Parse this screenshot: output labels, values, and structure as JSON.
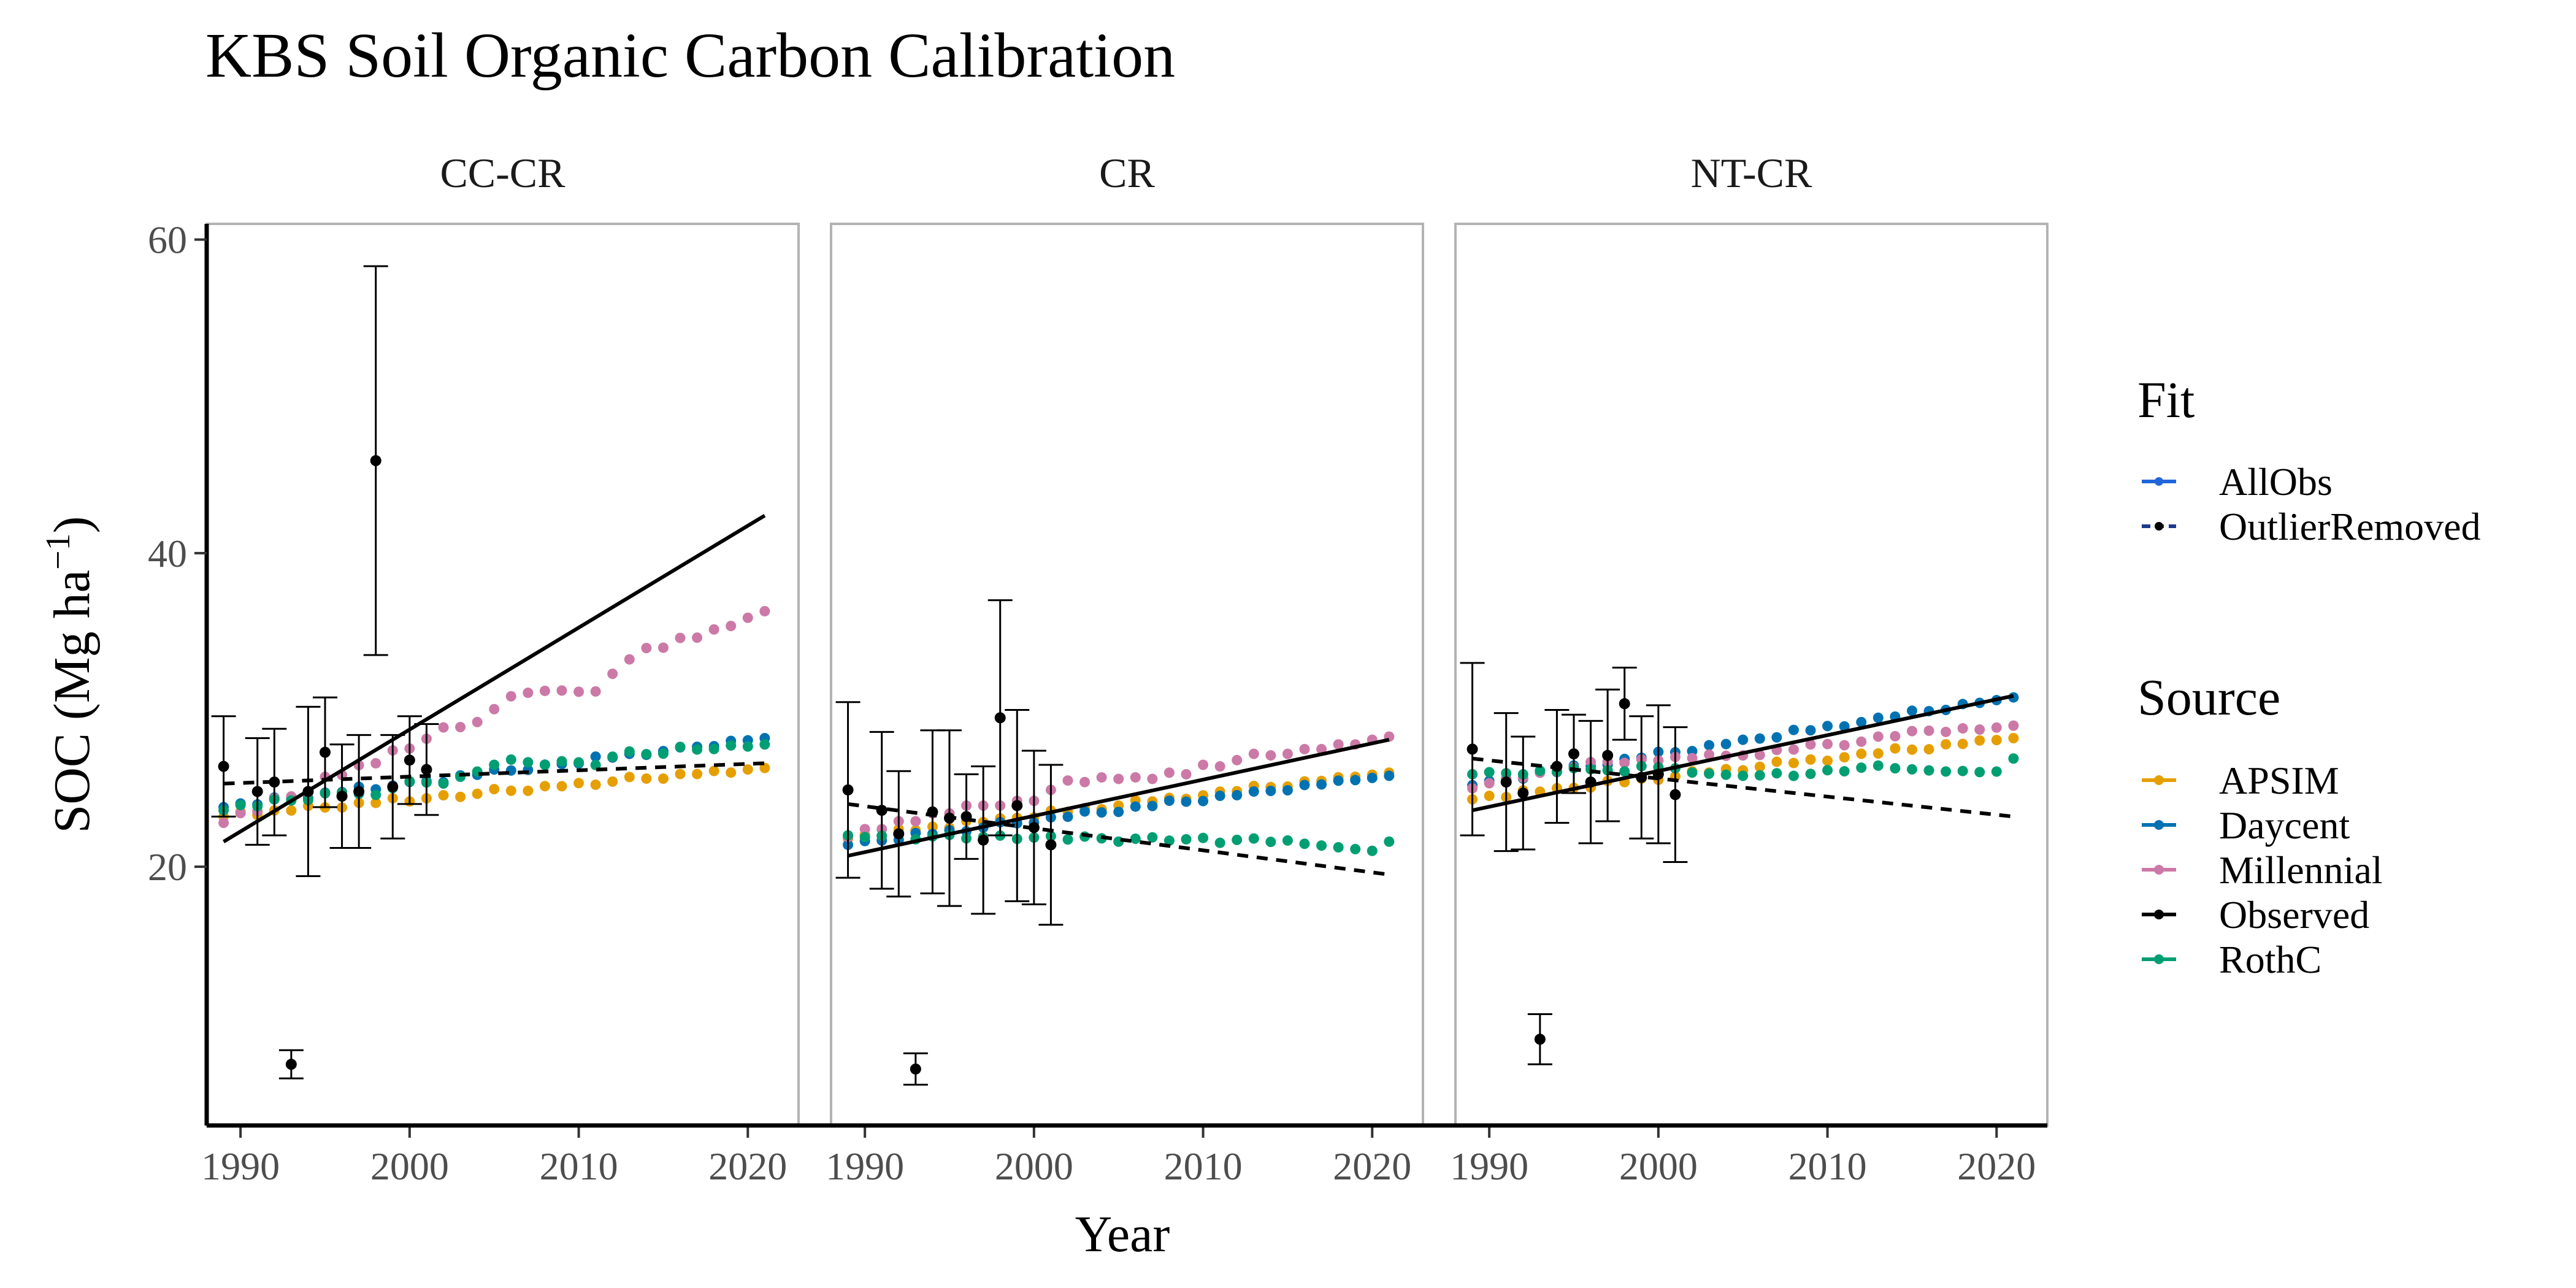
{
  "chart_data": {
    "type": "line",
    "title": "KBS Soil Organic Carbon Calibration",
    "xlabel": "Year",
    "ylabel_main": "SOC (Mg ha",
    "ylabel_sup": "−1",
    "ylabel_close": ")",
    "xlim": [
      1988,
      2023
    ],
    "ylim": [
      3.5,
      61
    ],
    "x_ticks": [
      1990,
      2000,
      2010,
      2020
    ],
    "y_ticks": [
      20,
      40,
      60
    ],
    "grid": false,
    "legend_placement": "right",
    "colors": {
      "APSIM": "#E69F00",
      "Daycent": "#0072B2",
      "Millennial": "#CC79A7",
      "Observed": "#000000",
      "RothC": "#009E73",
      "AllObs": "#2166D9",
      "OutlierRemoved": "#1a3a8a"
    },
    "legend_fit": {
      "title": "Fit",
      "items": [
        {
          "label": "AllObs",
          "color": "#2166D9",
          "dash": "solid"
        },
        {
          "label": "OutlierRemoved",
          "color": "#1a3a8a",
          "dash": "dashed"
        }
      ]
    },
    "legend_source": {
      "title": "Source",
      "items": [
        {
          "label": "APSIM",
          "color": "#E69F00"
        },
        {
          "label": "Daycent",
          "color": "#0072B2"
        },
        {
          "label": "Millennial",
          "color": "#CC79A7"
        },
        {
          "label": "Observed",
          "color": "#000000"
        },
        {
          "label": "RothC",
          "color": "#009E73"
        }
      ]
    },
    "panels": [
      {
        "name": "CC-CR",
        "observed": [
          {
            "x": 1989,
            "y": 26.4,
            "lo": 23.2,
            "hi": 29.6
          },
          {
            "x": 1991,
            "y": 24.8,
            "lo": 21.4,
            "hi": 28.2
          },
          {
            "x": 1992,
            "y": 25.4,
            "lo": 22.0,
            "hi": 28.8
          },
          {
            "x": 1993,
            "y": 7.4,
            "lo": 6.5,
            "hi": 8.3
          },
          {
            "x": 1994,
            "y": 24.8,
            "lo": 19.4,
            "hi": 30.2
          },
          {
            "x": 1995,
            "y": 27.3,
            "lo": 23.8,
            "hi": 30.8
          },
          {
            "x": 1996,
            "y": 24.5,
            "lo": 21.2,
            "hi": 27.8
          },
          {
            "x": 1997,
            "y": 24.8,
            "lo": 21.2,
            "hi": 28.4
          },
          {
            "x": 1998,
            "y": 45.9,
            "lo": 33.5,
            "hi": 58.3
          },
          {
            "x": 1999,
            "y": 25.1,
            "lo": 21.8,
            "hi": 28.4
          },
          {
            "x": 2000,
            "y": 26.8,
            "lo": 24.0,
            "hi": 29.6
          },
          {
            "x": 2001,
            "y": 26.2,
            "lo": 23.3,
            "hi": 29.1
          }
        ],
        "fit_allobs": {
          "x": [
            1989,
            2021
          ],
          "y": [
            21.6,
            42.4
          ]
        },
        "fit_outlier_removed": {
          "x": [
            1989,
            2021
          ],
          "y": [
            25.3,
            26.6
          ]
        },
        "models": {
          "APSIM": {
            "start": 23.2,
            "end": 26.3,
            "noise": [
              0,
              0.2,
              -0.1,
              0.1,
              0,
              0.2,
              0,
              -0.1,
              0.1,
              0,
              0.2,
              -0.1,
              0,
              0.1,
              -0.1,
              0,
              0.2,
              0,
              -0.1,
              0.1,
              0,
              0.1,
              -0.1,
              0,
              0.2,
              0,
              -0.1,
              0.1,
              0,
              0.1,
              -0.1,
              0,
              0
            ]
          },
          "Daycent": {
            "start": 23.8,
            "end": 28.2,
            "noise": [
              0,
              0.1,
              -0.1,
              0.2,
              0,
              -0.1,
              0.1,
              0,
              0.2,
              -0.1,
              0,
              0.1,
              0,
              -0.2,
              0.1,
              0,
              0.2,
              0,
              -0.1,
              0.1,
              0,
              -0.1,
              0.2,
              0,
              0.1,
              -0.1,
              0,
              0.1,
              0,
              -0.1,
              0.1,
              0,
              0
            ]
          },
          "Millennial": {
            "start": 22.8,
            "end": 36.3,
            "noise": [
              0,
              0.2,
              -0.1,
              0.3,
              0,
              -0.2,
              0.4,
              0.1,
              0.3,
              0,
              0.4,
              0.1,
              0.3,
              0.6,
              0.2,
              0.1,
              0.5,
              0.9,
              0.7,
              0.4,
              0,
              -0.5,
              -0.9,
              -0.2,
              0.3,
              0.6,
              0.2,
              0.4,
              0,
              0.1,
              -0.1,
              0,
              0
            ]
          },
          "RothC": {
            "start": 23.6,
            "end": 27.8,
            "noise": [
              0,
              0.2,
              0,
              0.3,
              0.1,
              0,
              0.3,
              0.2,
              0,
              -0.2,
              0.1,
              0.4,
              0.2,
              0,
              0.3,
              0.5,
              0.8,
              1.0,
              0.7,
              0.4,
              0.5,
              0.3,
              0,
              0.4,
              0.6,
              0.3,
              0.2,
              0.5,
              0.2,
              0.1,
              0.2,
              0,
              0
            ]
          }
        }
      },
      {
        "name": "CR",
        "observed": [
          {
            "x": 1989,
            "y": 24.9,
            "lo": 19.3,
            "hi": 30.5
          },
          {
            "x": 1991,
            "y": 23.6,
            "lo": 18.6,
            "hi": 28.6
          },
          {
            "x": 1992,
            "y": 22.1,
            "lo": 18.1,
            "hi": 26.1
          },
          {
            "x": 1993,
            "y": 7.1,
            "lo": 6.1,
            "hi": 8.1
          },
          {
            "x": 1994,
            "y": 23.5,
            "lo": 18.3,
            "hi": 28.7
          },
          {
            "x": 1995,
            "y": 23.1,
            "lo": 17.5,
            "hi": 28.7
          },
          {
            "x": 1996,
            "y": 23.2,
            "lo": 20.5,
            "hi": 25.9
          },
          {
            "x": 1997,
            "y": 21.7,
            "lo": 17.0,
            "hi": 26.4
          },
          {
            "x": 1998,
            "y": 29.5,
            "lo": 22.0,
            "hi": 37.0
          },
          {
            "x": 1999,
            "y": 23.9,
            "lo": 17.8,
            "hi": 30.0
          },
          {
            "x": 2000,
            "y": 22.5,
            "lo": 17.6,
            "hi": 27.4
          },
          {
            "x": 2001,
            "y": 21.4,
            "lo": 16.3,
            "hi": 26.5
          }
        ],
        "fit_allobs": {
          "x": [
            1989,
            2021
          ],
          "y": [
            20.7,
            28.1
          ]
        },
        "fit_outlier_removed": {
          "x": [
            1989,
            2021
          ],
          "y": [
            24.0,
            19.5
          ]
        },
        "models": {
          "APSIM": {
            "start": 21.8,
            "end": 26.0,
            "noise": [
              0,
              0.1,
              -0.1,
              0.2,
              0,
              0.1,
              -0.1,
              0.2,
              0,
              0.1,
              0,
              -0.1,
              0.2,
              0,
              0.1,
              -0.1,
              0,
              0.2,
              0,
              0.1,
              -0.1,
              0,
              0.1,
              0,
              0.2,
              0,
              -0.1,
              0.1,
              0,
              0.1,
              0,
              0,
              0
            ]
          },
          "Daycent": {
            "start": 21.4,
            "end": 25.8,
            "noise": [
              0,
              0.1,
              0,
              -0.1,
              0.2,
              0,
              0.1,
              -0.1,
              0,
              0.2,
              0,
              -0.1,
              0.1,
              0,
              0.2,
              0,
              -0.1,
              0.1,
              0,
              0.2,
              0,
              -0.1,
              0.1,
              0,
              0.1,
              0,
              -0.1,
              0.1,
              0,
              0.1,
              0,
              0,
              0
            ]
          },
          "Millennial": {
            "start": 21.9,
            "end": 28.3,
            "noise": [
              0,
              0.3,
              0.1,
              0.4,
              0.2,
              0.5,
              0.3,
              0.6,
              0.4,
              0.2,
              0.3,
              0.1,
              0.6,
              1.0,
              0.7,
              0.8,
              0.5,
              0.4,
              0.1,
              0.3,
              0,
              0.4,
              0.1,
              0.3,
              0.5,
              0.2,
              0.1,
              0.2,
              0,
              0.1,
              -0.1,
              0,
              0
            ]
          },
          "RothC": {
            "start": 22.0,
            "end": 21.6,
            "noise": [
              0,
              -0.1,
              0,
              0.1,
              -0.2,
              0,
              0.1,
              -0.1,
              0,
              0.1,
              -0.1,
              0,
              0.1,
              -0.1,
              0.1,
              0,
              -0.2,
              0,
              0.1,
              -0.1,
              0,
              0.1,
              -0.2,
              0,
              0.1,
              -0.1,
              0,
              -0.2,
              -0.3,
              -0.4,
              -0.5,
              -0.6,
              0
            ]
          }
        }
      },
      {
        "name": "NT-CR",
        "observed": [
          {
            "x": 1989,
            "y": 27.5,
            "lo": 22.0,
            "hi": 33.0
          },
          {
            "x": 1991,
            "y": 25.4,
            "lo": 21.0,
            "hi": 29.8
          },
          {
            "x": 1992,
            "y": 24.7,
            "lo": 21.1,
            "hi": 28.3
          },
          {
            "x": 1993,
            "y": 9.0,
            "lo": 7.4,
            "hi": 10.6
          },
          {
            "x": 1994,
            "y": 26.4,
            "lo": 22.8,
            "hi": 30.0
          },
          {
            "x": 1995,
            "y": 27.2,
            "lo": 24.7,
            "hi": 29.7
          },
          {
            "x": 1996,
            "y": 25.4,
            "lo": 21.5,
            "hi": 29.3
          },
          {
            "x": 1997,
            "y": 27.1,
            "lo": 22.9,
            "hi": 31.3
          },
          {
            "x": 1998,
            "y": 30.4,
            "lo": 28.1,
            "hi": 32.7
          },
          {
            "x": 1999,
            "y": 25.7,
            "lo": 21.8,
            "hi": 29.6
          },
          {
            "x": 2000,
            "y": 25.9,
            "lo": 21.5,
            "hi": 30.3
          },
          {
            "x": 2001,
            "y": 24.6,
            "lo": 20.3,
            "hi": 28.9
          }
        ],
        "fit_allobs": {
          "x": [
            1989,
            2021
          ],
          "y": [
            23.6,
            30.9
          ]
        },
        "fit_outlier_removed": {
          "x": [
            1989,
            2021
          ],
          "y": [
            26.9,
            23.2
          ]
        },
        "models": {
          "APSIM": {
            "start": 24.3,
            "end": 28.2,
            "noise": [
              0,
              0.1,
              -0.1,
              0.2,
              0,
              0.1,
              0,
              -0.1,
              0.2,
              0,
              0.1,
              -0.1,
              0,
              0.2,
              0,
              0.1,
              -0.1,
              0,
              0.2,
              0,
              0.1,
              -0.1,
              0,
              0.1,
              0,
              0.2,
              0,
              -0.1,
              0.1,
              0,
              0.1,
              0,
              0
            ]
          },
          "Daycent": {
            "start": 25.2,
            "end": 30.8,
            "noise": [
              0,
              0.1,
              0,
              -0.1,
              0.1,
              0,
              0.2,
              0,
              -0.1,
              0.1,
              0,
              0.2,
              0,
              -0.1,
              0.1,
              0,
              0.1,
              0,
              -0.1,
              0.2,
              0,
              0.1,
              -0.1,
              0,
              0.1,
              0,
              0.2,
              0,
              -0.1,
              0.1,
              0,
              0,
              0
            ]
          },
          "Millennial": {
            "start": 25.0,
            "end": 29.0,
            "noise": [
              0,
              0.2,
              0.4,
              0.3,
              0.5,
              0.4,
              0.6,
              0.8,
              0.7,
              0.5,
              0.6,
              0.4,
              0.5,
              0.3,
              0.4,
              0.2,
              0.1,
              0,
              0.2,
              0.1,
              0.3,
              0.2,
              0,
              0.1,
              0.3,
              0.2,
              0.4,
              0.3,
              0.1,
              0.2,
              0,
              0,
              0
            ]
          },
          "RothC": {
            "start": 25.9,
            "end": 26.9,
            "noise": [
              0,
              0.1,
              0,
              -0.1,
              0.1,
              0,
              0.2,
              0.1,
              0,
              -0.1,
              0.2,
              0.1,
              0,
              -0.3,
              -0.4,
              -0.5,
              -0.6,
              -0.6,
              -0.5,
              -0.7,
              -0.6,
              -0.4,
              -0.5,
              -0.3,
              -0.2,
              -0.4,
              -0.5,
              -0.6,
              -0.7,
              -0.7,
              -0.8,
              -0.8,
              0
            ]
          }
        }
      }
    ]
  }
}
